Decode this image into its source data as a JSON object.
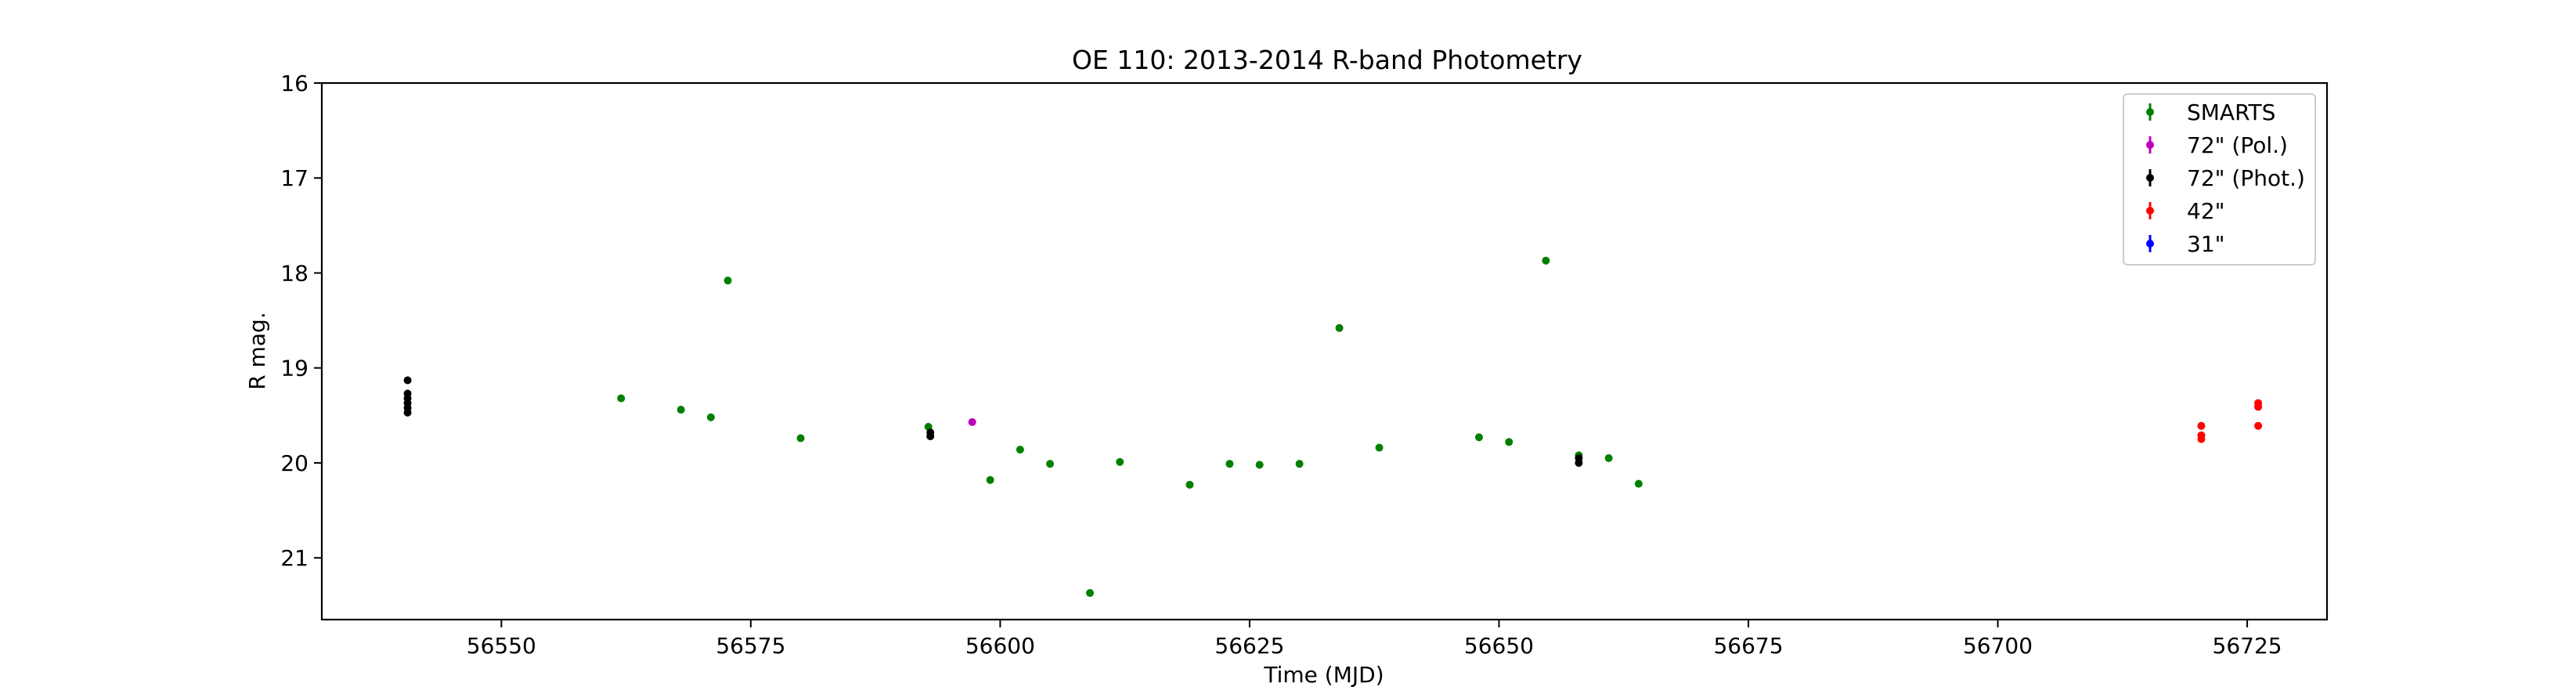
{
  "chart_data": {
    "type": "scatter",
    "title": "OE 110: 2013-2014 R-band Photometry",
    "xlabel": "Time (MJD)",
    "ylabel": "R mag.",
    "xlim": [
      56532,
      56733
    ],
    "ylim": [
      21.65,
      16.0
    ],
    "y_inverted": true,
    "xticks": [
      56550,
      56575,
      56600,
      56625,
      56650,
      56675,
      56700,
      56725
    ],
    "yticks": [
      16,
      17,
      18,
      19,
      20,
      21
    ],
    "grid": false,
    "legend_position": "top-right",
    "series": [
      {
        "name": "SMARTS",
        "color": "#008000",
        "points": [
          {
            "x": 56562,
            "y": 19.32
          },
          {
            "x": 56568,
            "y": 19.44
          },
          {
            "x": 56571,
            "y": 19.52
          },
          {
            "x": 56572.7,
            "y": 18.08
          },
          {
            "x": 56580,
            "y": 19.74
          },
          {
            "x": 56592.8,
            "y": 19.62
          },
          {
            "x": 56599,
            "y": 20.18
          },
          {
            "x": 56602,
            "y": 19.86
          },
          {
            "x": 56605,
            "y": 20.01
          },
          {
            "x": 56609,
            "y": 21.37
          },
          {
            "x": 56612,
            "y": 19.99
          },
          {
            "x": 56619,
            "y": 20.23
          },
          {
            "x": 56623,
            "y": 20.01
          },
          {
            "x": 56626,
            "y": 20.02
          },
          {
            "x": 56630,
            "y": 20.01
          },
          {
            "x": 56634,
            "y": 18.58
          },
          {
            "x": 56638,
            "y": 19.84
          },
          {
            "x": 56648,
            "y": 19.73
          },
          {
            "x": 56651,
            "y": 19.78
          },
          {
            "x": 56654.7,
            "y": 17.87
          },
          {
            "x": 56658,
            "y": 19.92
          },
          {
            "x": 56661,
            "y": 19.95
          },
          {
            "x": 56664,
            "y": 20.22
          }
        ]
      },
      {
        "name": "72\" (Pol.)",
        "color": "#bf00bf",
        "points": [
          {
            "x": 56597.2,
            "y": 19.57
          }
        ]
      },
      {
        "name": "72\" (Phot.)",
        "color": "#000000",
        "points": [
          {
            "x": 56540.6,
            "y": 19.13
          },
          {
            "x": 56540.6,
            "y": 19.27
          },
          {
            "x": 56540.6,
            "y": 19.32
          },
          {
            "x": 56540.6,
            "y": 19.37
          },
          {
            "x": 56540.6,
            "y": 19.42
          },
          {
            "x": 56540.6,
            "y": 19.47
          },
          {
            "x": 56593,
            "y": 19.68
          },
          {
            "x": 56593,
            "y": 19.72
          },
          {
            "x": 56658,
            "y": 19.95
          },
          {
            "x": 56658,
            "y": 20.0
          }
        ]
      },
      {
        "name": "42\"",
        "color": "#ff0000",
        "points": [
          {
            "x": 56720.4,
            "y": 19.61
          },
          {
            "x": 56720.4,
            "y": 19.71
          },
          {
            "x": 56720.4,
            "y": 19.75
          },
          {
            "x": 56726.1,
            "y": 19.37
          },
          {
            "x": 56726.1,
            "y": 19.41
          },
          {
            "x": 56726.1,
            "y": 19.61
          }
        ]
      },
      {
        "name": "31\"",
        "color": "#0000ff",
        "points": []
      }
    ]
  }
}
